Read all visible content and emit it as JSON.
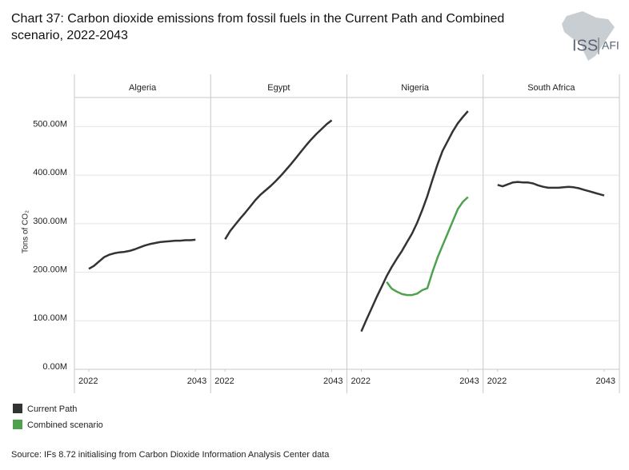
{
  "title": "Chart 37: Carbon dioxide emissions from fossil fuels in the Current Path and Combined scenario, 2022-2043",
  "y_axis_label": "Tons of CO₂",
  "source": "Source: IFs 8.72 initialising from Carbon Dioxide Information Analysis Center data",
  "logo": {
    "left": "ISS",
    "right": "AFI"
  },
  "chart_data": [
    {
      "type": "line",
      "title": "Algeria",
      "x": [
        2022,
        2023,
        2024,
        2025,
        2026,
        2027,
        2028,
        2029,
        2030,
        2031,
        2032,
        2033,
        2034,
        2035,
        2036,
        2037,
        2038,
        2039,
        2040,
        2041,
        2042,
        2043
      ],
      "xlim": [
        2022,
        2043
      ],
      "xticks": [
        2022,
        2043
      ],
      "ylim": [
        0,
        560000000
      ],
      "yticks": [
        {
          "value": 0,
          "label": "0.00M"
        },
        {
          "value": 100000000,
          "label": "100.00M"
        },
        {
          "value": 200000000,
          "label": "200.00M"
        },
        {
          "value": 300000000,
          "label": "300.00M"
        },
        {
          "value": 400000000,
          "label": "400.00M"
        },
        {
          "value": 500000000,
          "label": "500.00M"
        }
      ],
      "grid": true,
      "series": [
        {
          "name": "Current Path",
          "color": "#333333",
          "values": [
            207000000,
            213000000,
            222000000,
            231000000,
            236000000,
            239000000,
            241000000,
            242000000,
            244000000,
            247000000,
            251000000,
            255000000,
            258000000,
            260000000,
            262000000,
            263000000,
            264000000,
            265000000,
            265000000,
            266000000,
            266000000,
            267000000
          ]
        }
      ]
    },
    {
      "type": "line",
      "title": "Egypt",
      "x": [
        2022,
        2023,
        2024,
        2025,
        2026,
        2027,
        2028,
        2029,
        2030,
        2031,
        2032,
        2033,
        2034,
        2035,
        2036,
        2037,
        2038,
        2039,
        2040,
        2041,
        2042,
        2043
      ],
      "xlim": [
        2022,
        2043
      ],
      "xticks": [
        2022,
        2043
      ],
      "ylim": [
        0,
        560000000
      ],
      "yticks": [
        0,
        100000000,
        200000000,
        300000000,
        400000000,
        500000000
      ],
      "grid": true,
      "series": [
        {
          "color": "#333333",
          "values": [
            268000000,
            285000000,
            298000000,
            311000000,
            323000000,
            336000000,
            349000000,
            360000000,
            369000000,
            378000000,
            388000000,
            399000000,
            411000000,
            423000000,
            436000000,
            449000000,
            462000000,
            474000000,
            485000000,
            495000000,
            505000000,
            513000000
          ]
        }
      ]
    },
    {
      "type": "line",
      "title": "Nigeria",
      "x": [
        2022,
        2023,
        2024,
        2025,
        2026,
        2027,
        2028,
        2029,
        2030,
        2031,
        2032,
        2033,
        2034,
        2035,
        2036,
        2037,
        2038,
        2039,
        2040,
        2041,
        2042,
        2043
      ],
      "xlim": [
        2022,
        2043
      ],
      "xticks": [
        2022,
        2043
      ],
      "ylim": [
        0,
        560000000
      ],
      "yticks": [
        0,
        100000000,
        200000000,
        300000000,
        400000000,
        500000000
      ],
      "grid": true,
      "series": [
        {
          "color": "#333333",
          "values": [
            78000000,
            102000000,
            125000000,
            148000000,
            170000000,
            192000000,
            211000000,
            228000000,
            244000000,
            262000000,
            280000000,
            302000000,
            328000000,
            357000000,
            390000000,
            422000000,
            450000000,
            470000000,
            490000000,
            507000000,
            520000000,
            532000000
          ]
        },
        {
          "name": "Combined scenario",
          "color": "#4ea24e",
          "values": [
            null,
            null,
            null,
            null,
            null,
            180000000,
            166000000,
            160000000,
            155000000,
            153000000,
            153000000,
            156000000,
            163000000,
            167000000,
            200000000,
            230000000,
            255000000,
            280000000,
            305000000,
            330000000,
            345000000,
            355000000
          ]
        }
      ]
    },
    {
      "type": "line",
      "title": "South Africa",
      "x": [
        2022,
        2023,
        2024,
        2025,
        2026,
        2027,
        2028,
        2029,
        2030,
        2031,
        2032,
        2033,
        2034,
        2035,
        2036,
        2037,
        2038,
        2039,
        2040,
        2041,
        2042,
        2043
      ],
      "xlim": [
        2022,
        2043
      ],
      "xticks": [
        2022,
        2043
      ],
      "ylim": [
        0,
        560000000
      ],
      "yticks": [
        0,
        100000000,
        200000000,
        300000000,
        400000000,
        500000000
      ],
      "grid": true,
      "series": [
        {
          "color": "#333333",
          "values": [
            380000000,
            377000000,
            381000000,
            385000000,
            386000000,
            385000000,
            385000000,
            383000000,
            379000000,
            376000000,
            374000000,
            374000000,
            374000000,
            375000000,
            376000000,
            375000000,
            373000000,
            370000000,
            367000000,
            364000000,
            361000000,
            358000000
          ]
        }
      ]
    }
  ]
}
